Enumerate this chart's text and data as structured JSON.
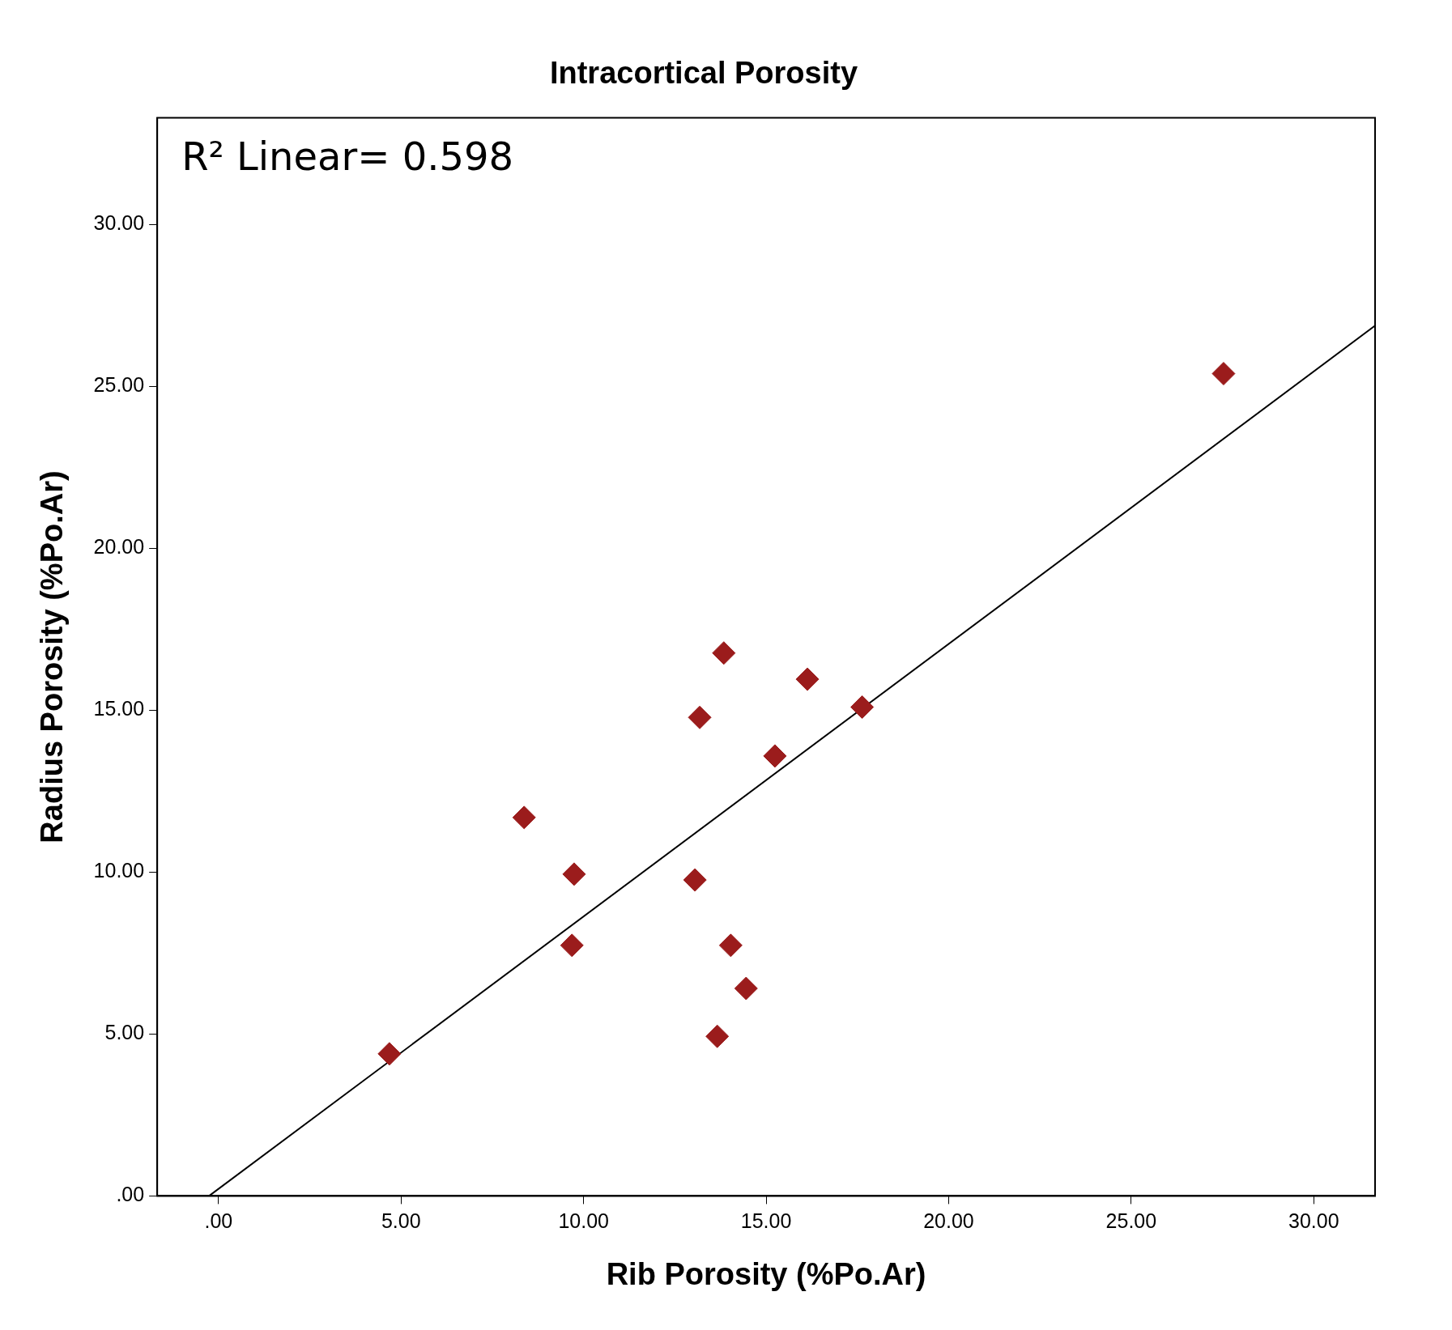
{
  "chart_data": {
    "type": "scatter",
    "title": "Intracortical Porosity",
    "xlabel": "Rib Porosity (%Po.Ar)",
    "ylabel": "Radius Porosity (%Po.Ar)",
    "annotations": [
      "R² Linear= 0.598"
    ],
    "series": [
      {
        "type": "scatter",
        "color": "#9b1c1c",
        "marker": "diamond",
        "x": [
          4.68,
          8.37,
          9.74,
          9.68,
          13.05,
          13.18,
          13.84,
          13.66,
          14.03,
          14.45,
          15.24,
          16.13,
          17.63,
          27.53
        ],
        "values": [
          4.39,
          11.69,
          9.94,
          7.74,
          9.76,
          14.78,
          16.77,
          4.93,
          7.74,
          6.41,
          13.59,
          15.96,
          15.1,
          25.4
        ]
      },
      {
        "type": "line",
        "color": "#000000",
        "marker": "none",
        "x": [
          -0.26,
          31.68
        ],
        "values": [
          0,
          26.88
        ]
      }
    ],
    "xlim": [
      -1.68,
      31.68
    ],
    "ylim": [
      0,
      33.3
    ],
    "xticks": [
      {
        "value": 0,
        "label": ".00"
      },
      {
        "value": 5,
        "label": "5.00"
      },
      {
        "value": 10,
        "label": "10.00"
      },
      {
        "value": 15,
        "label": "15.00"
      },
      {
        "value": 20,
        "label": "20.00"
      },
      {
        "value": 25,
        "label": "25.00"
      },
      {
        "value": 30,
        "label": "30.00"
      }
    ],
    "yticks": [
      {
        "value": 0,
        "label": ".00"
      },
      {
        "value": 5,
        "label": "5.00"
      },
      {
        "value": 10,
        "label": "10.00"
      },
      {
        "value": 15,
        "label": "15.00"
      },
      {
        "value": 20,
        "label": "20.00"
      },
      {
        "value": 25,
        "label": "25.00"
      },
      {
        "value": 30,
        "label": "30.00"
      }
    ],
    "grid": false,
    "legend": false
  }
}
